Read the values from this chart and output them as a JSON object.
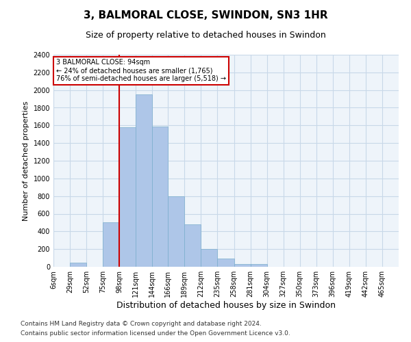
{
  "title": "3, BALMORAL CLOSE, SWINDON, SN3 1HR",
  "subtitle": "Size of property relative to detached houses in Swindon",
  "xlabel": "Distribution of detached houses by size in Swindon",
  "ylabel": "Number of detached properties",
  "bar_color": "#aec6e8",
  "bar_edge_color": "#7aaecc",
  "grid_color": "#c8d8e8",
  "background_color": "#eef4fa",
  "vline_x": 98,
  "vline_color": "#cc0000",
  "annotation_text": "3 BALMORAL CLOSE: 94sqm\n← 24% of detached houses are smaller (1,765)\n76% of semi-detached houses are larger (5,518) →",
  "annotation_box_color": "#ffffff",
  "annotation_box_edge": "#cc0000",
  "categories": [
    "6sqm",
    "29sqm",
    "52sqm",
    "75sqm",
    "98sqm",
    "121sqm",
    "144sqm",
    "166sqm",
    "189sqm",
    "212sqm",
    "235sqm",
    "258sqm",
    "281sqm",
    "304sqm",
    "327sqm",
    "350sqm",
    "373sqm",
    "396sqm",
    "419sqm",
    "442sqm",
    "465sqm"
  ],
  "values": [
    0,
    50,
    0,
    500,
    1580,
    1950,
    1590,
    800,
    480,
    200,
    90,
    30,
    30,
    0,
    0,
    0,
    0,
    0,
    0,
    0,
    0
  ],
  "bin_edges": [
    6,
    29,
    52,
    75,
    98,
    121,
    144,
    166,
    189,
    212,
    235,
    258,
    281,
    304,
    327,
    350,
    373,
    396,
    419,
    442,
    465,
    488
  ],
  "ylim": [
    0,
    2400
  ],
  "yticks": [
    0,
    200,
    400,
    600,
    800,
    1000,
    1200,
    1400,
    1600,
    1800,
    2000,
    2200,
    2400
  ],
  "footer_line1": "Contains HM Land Registry data © Crown copyright and database right 2024.",
  "footer_line2": "Contains public sector information licensed under the Open Government Licence v3.0.",
  "title_fontsize": 11,
  "subtitle_fontsize": 9,
  "xlabel_fontsize": 9,
  "ylabel_fontsize": 8,
  "tick_fontsize": 7,
  "footer_fontsize": 6.5,
  "annot_fontsize": 7
}
